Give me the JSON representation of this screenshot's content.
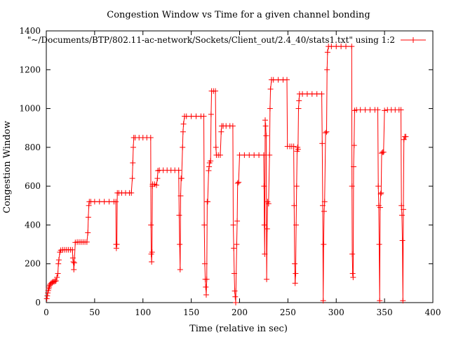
{
  "chart_data": {
    "type": "line",
    "title": "Congestion Window vs Time for a given channel bonding",
    "xlabel": "Time (relative in sec)",
    "ylabel": "Congestion Window",
    "xlim": [
      0,
      400
    ],
    "ylim": [
      0,
      1400
    ],
    "xticks": [
      "0",
      "50",
      "100",
      "150",
      "200",
      "250",
      "300",
      "350",
      "400"
    ],
    "yticks": [
      "0",
      "200",
      "400",
      "600",
      "800",
      "1000",
      "1200",
      "1400"
    ],
    "grid": false,
    "legend_position": "top-right",
    "series": [
      {
        "name": "\"~/Documents/BTP/802.11-ac-network/Sockets/Client_out/2.4_40/stats1.txt\" using 1:2",
        "color": "#ff0000",
        "marker": "plus",
        "points": [
          [
            0.5,
            20
          ],
          [
            1,
            35
          ],
          [
            1.5,
            50
          ],
          [
            2,
            62
          ],
          [
            2.5,
            72
          ],
          [
            3,
            80
          ],
          [
            3.5,
            88
          ],
          [
            4,
            94
          ],
          [
            5,
            100
          ],
          [
            6,
            104
          ],
          [
            7,
            107
          ],
          [
            8,
            108
          ],
          [
            9,
            110
          ],
          [
            10,
            112
          ],
          [
            11,
            130
          ],
          [
            12,
            150
          ],
          [
            12.5,
            200
          ],
          [
            13,
            220
          ],
          [
            14,
            260
          ],
          [
            15,
            270
          ],
          [
            17,
            272
          ],
          [
            19,
            272
          ],
          [
            21,
            272
          ],
          [
            23,
            272
          ],
          [
            25,
            272
          ],
          [
            27,
            272
          ],
          [
            27.5,
            230
          ],
          [
            28,
            210
          ],
          [
            28.5,
            170
          ],
          [
            29,
            205
          ],
          [
            30,
            310
          ],
          [
            32,
            312
          ],
          [
            34,
            312
          ],
          [
            36,
            312
          ],
          [
            38,
            312
          ],
          [
            40,
            312
          ],
          [
            42,
            312
          ],
          [
            43,
            360
          ],
          [
            43.5,
            440
          ],
          [
            44,
            500
          ],
          [
            44.5,
            520
          ],
          [
            46,
            520
          ],
          [
            50,
            520
          ],
          [
            55,
            520
          ],
          [
            60,
            520
          ],
          [
            65,
            520
          ],
          [
            70,
            520
          ],
          [
            72,
            520
          ],
          [
            72.2,
            300
          ],
          [
            72.5,
            280
          ],
          [
            73,
            300
          ],
          [
            73.5,
            565
          ],
          [
            75,
            565
          ],
          [
            78,
            565
          ],
          [
            82,
            565
          ],
          [
            86,
            565
          ],
          [
            88,
            565
          ],
          [
            89,
            640
          ],
          [
            89.5,
            720
          ],
          [
            90,
            800
          ],
          [
            90.5,
            850
          ],
          [
            92,
            850
          ],
          [
            96,
            850
          ],
          [
            100,
            850
          ],
          [
            104,
            850
          ],
          [
            108,
            850
          ],
          [
            108.3,
            400
          ],
          [
            108.6,
            250
          ],
          [
            109,
            210
          ],
          [
            109.4,
            260
          ],
          [
            109.8,
            600
          ],
          [
            110,
            610
          ],
          [
            112,
            610
          ],
          [
            114,
            605
          ],
          [
            115,
            640
          ],
          [
            115.5,
            680
          ],
          [
            117,
            682
          ],
          [
            121,
            682
          ],
          [
            125,
            682
          ],
          [
            129,
            682
          ],
          [
            133,
            682
          ],
          [
            137,
            682
          ],
          [
            137.5,
            450
          ],
          [
            138,
            300
          ],
          [
            138.5,
            170
          ],
          [
            139,
            550
          ],
          [
            139.5,
            640
          ],
          [
            140,
            640
          ],
          [
            141,
            800
          ],
          [
            141.5,
            880
          ],
          [
            142,
            920
          ],
          [
            143,
            960
          ],
          [
            145,
            960
          ],
          [
            150,
            960
          ],
          [
            155,
            960
          ],
          [
            160,
            960
          ],
          [
            163,
            960
          ],
          [
            163.5,
            400
          ],
          [
            164,
            200
          ],
          [
            164.5,
            120
          ],
          [
            165,
            80
          ],
          [
            165.5,
            40
          ],
          [
            166,
            120
          ],
          [
            166.5,
            520
          ],
          [
            167,
            520
          ],
          [
            168,
            680
          ],
          [
            168.5,
            700
          ],
          [
            169,
            720
          ],
          [
            170,
            730
          ],
          [
            170.5,
            970
          ],
          [
            171,
            1090
          ],
          [
            173,
            1090
          ],
          [
            175,
            1090
          ],
          [
            175.5,
            800
          ],
          [
            176,
            760
          ],
          [
            178,
            760
          ],
          [
            180,
            760
          ],
          [
            181,
            880
          ],
          [
            181.5,
            910
          ],
          [
            183,
            910
          ],
          [
            186,
            910
          ],
          [
            190,
            910
          ],
          [
            193,
            910
          ],
          [
            193.5,
            400
          ],
          [
            194,
            280
          ],
          [
            194.5,
            150
          ],
          [
            195,
            60
          ],
          [
            195.5,
            30
          ],
          [
            196,
            0
          ],
          [
            197,
            300
          ],
          [
            197.5,
            420
          ],
          [
            198,
            615
          ],
          [
            199,
            620
          ],
          [
            200,
            760
          ],
          [
            205,
            760
          ],
          [
            210,
            760
          ],
          [
            215,
            760
          ],
          [
            220,
            760
          ],
          [
            225,
            760
          ],
          [
            225.3,
            600
          ],
          [
            225.6,
            400
          ],
          [
            226,
            250
          ],
          [
            226.5,
            940
          ],
          [
            227,
            910
          ],
          [
            227.5,
            860
          ],
          [
            228,
            120
          ],
          [
            228.5,
            380
          ],
          [
            229,
            520
          ],
          [
            230,
            510
          ],
          [
            231,
            760
          ],
          [
            231.5,
            1000
          ],
          [
            232,
            1100
          ],
          [
            233,
            1148
          ],
          [
            235,
            1148
          ],
          [
            240,
            1148
          ],
          [
            245,
            1148
          ],
          [
            249,
            1148
          ],
          [
            249.5,
            805
          ],
          [
            252,
            805
          ],
          [
            254,
            805
          ],
          [
            256,
            805
          ],
          [
            256.5,
            500
          ],
          [
            257,
            200
          ],
          [
            257.5,
            100
          ],
          [
            258,
            150
          ],
          [
            258.5,
            400
          ],
          [
            259,
            600
          ],
          [
            259.5,
            780
          ],
          [
            260,
            800
          ],
          [
            260.5,
            790
          ],
          [
            261,
            1000
          ],
          [
            261.5,
            1040
          ],
          [
            262,
            1075
          ],
          [
            265,
            1075
          ],
          [
            270,
            1075
          ],
          [
            275,
            1075
          ],
          [
            280,
            1075
          ],
          [
            285,
            1075
          ],
          [
            285.5,
            820
          ],
          [
            286,
            500
          ],
          [
            286.5,
            10
          ],
          [
            287,
            300
          ],
          [
            287.5,
            470
          ],
          [
            288,
            520
          ],
          [
            289,
            875
          ],
          [
            290,
            880
          ],
          [
            290.5,
            1200
          ],
          [
            291,
            1290
          ],
          [
            292,
            1320
          ],
          [
            295,
            1320
          ],
          [
            300,
            1320
          ],
          [
            305,
            1320
          ],
          [
            310,
            1320
          ],
          [
            316,
            1320
          ],
          [
            316.3,
            600
          ],
          [
            316.6,
            250
          ],
          [
            317,
            150
          ],
          [
            317.5,
            130
          ],
          [
            318,
            700
          ],
          [
            318.5,
            810
          ],
          [
            319,
            990
          ],
          [
            321,
            993
          ],
          [
            325,
            993
          ],
          [
            330,
            993
          ],
          [
            335,
            993
          ],
          [
            340,
            993
          ],
          [
            343,
            993
          ],
          [
            343.5,
            600
          ],
          [
            344,
            500
          ],
          [
            344.5,
            300
          ],
          [
            345,
            10
          ],
          [
            345.5,
            490
          ],
          [
            346,
            560
          ],
          [
            346.5,
            565
          ],
          [
            347,
            770
          ],
          [
            348,
            775
          ],
          [
            349,
            775
          ],
          [
            350,
            990
          ],
          [
            353,
            993
          ],
          [
            357,
            993
          ],
          [
            361,
            993
          ],
          [
            365,
            993
          ],
          [
            367,
            993
          ],
          [
            367.5,
            500
          ],
          [
            368,
            450
          ],
          [
            368.5,
            320
          ],
          [
            369,
            10
          ],
          [
            369.5,
            480
          ],
          [
            370,
            840
          ],
          [
            371,
            855
          ],
          [
            372,
            855
          ]
        ]
      }
    ]
  }
}
